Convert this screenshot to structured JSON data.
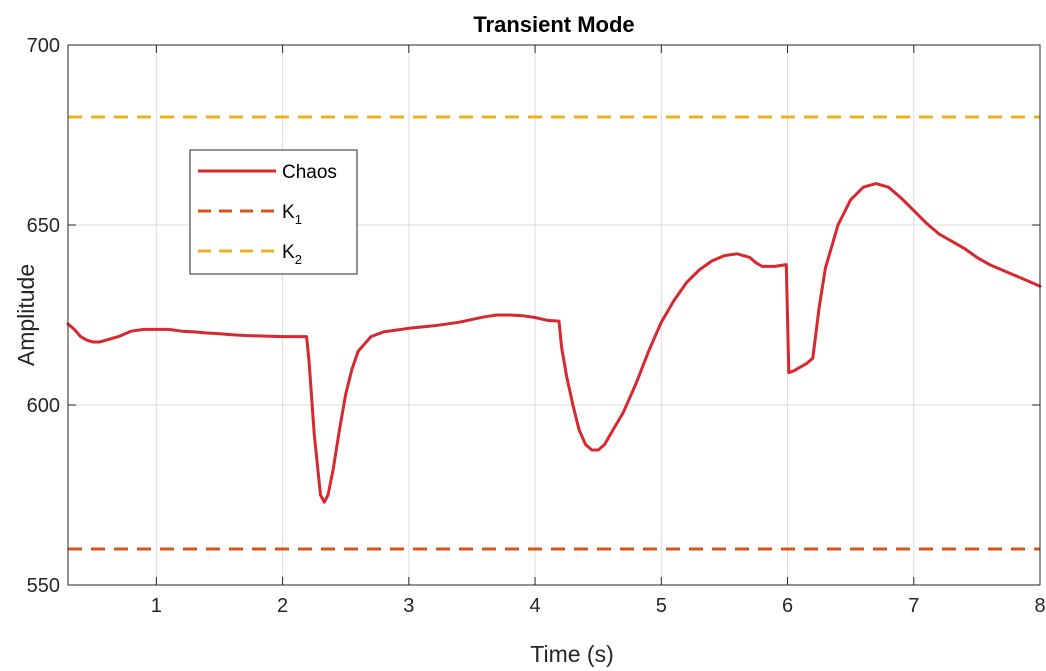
{
  "chart_data": {
    "type": "line",
    "title": "Transient Mode",
    "xlabel": "Time (s)",
    "ylabel": "Amplitude",
    "xlim": [
      0.3,
      8
    ],
    "ylim": [
      550,
      700
    ],
    "x_ticks": [
      1,
      2,
      3,
      4,
      5,
      6,
      7,
      8
    ],
    "y_ticks": [
      550,
      600,
      650,
      700
    ],
    "grid": true,
    "legend_position": "upper-left",
    "series": [
      {
        "name": "Chaos",
        "style": "solid",
        "color": "#d7282f",
        "x": [
          0.3,
          0.35,
          0.4,
          0.45,
          0.5,
          0.55,
          0.6,
          0.7,
          0.8,
          0.9,
          1.0,
          1.1,
          1.2,
          1.3,
          1.4,
          1.5,
          1.6,
          1.7,
          1.8,
          1.9,
          2.0,
          2.1,
          2.19,
          2.21,
          2.25,
          2.3,
          2.33,
          2.36,
          2.4,
          2.45,
          2.5,
          2.55,
          2.6,
          2.7,
          2.8,
          2.9,
          3.0,
          3.2,
          3.4,
          3.6,
          3.7,
          3.8,
          3.9,
          4.0,
          4.1,
          4.19,
          4.21,
          4.25,
          4.3,
          4.35,
          4.4,
          4.45,
          4.5,
          4.55,
          4.6,
          4.7,
          4.8,
          4.9,
          5.0,
          5.1,
          5.2,
          5.3,
          5.4,
          5.5,
          5.6,
          5.7,
          5.75,
          5.8,
          5.9,
          5.99,
          6.01,
          6.05,
          6.1,
          6.15,
          6.2,
          6.25,
          6.3,
          6.4,
          6.5,
          6.6,
          6.7,
          6.8,
          6.9,
          7.0,
          7.1,
          7.2,
          7.3,
          7.4,
          7.5,
          7.6,
          7.7,
          7.8,
          7.9,
          8.0
        ],
        "y": [
          622.5,
          621,
          619,
          618,
          617.5,
          617.5,
          618,
          619,
          620.5,
          621,
          621,
          621,
          620.5,
          620.3,
          620,
          619.8,
          619.5,
          619.3,
          619.2,
          619.1,
          619,
          619,
          619,
          612,
          592,
          575,
          573,
          575,
          582,
          593,
          603,
          610,
          615,
          619,
          620.3,
          620.8,
          621.3,
          622,
          623,
          624.5,
          625,
          625,
          624.8,
          624.3,
          623.5,
          623.3,
          616,
          608,
          600,
          593,
          589,
          587.5,
          587.5,
          589,
          592,
          598,
          606,
          615,
          623,
          629,
          634,
          637.5,
          640,
          641.5,
          642,
          641,
          639.5,
          638.5,
          638.5,
          639,
          609,
          609.5,
          610.5,
          611.5,
          613,
          627,
          638,
          650,
          657,
          660.5,
          661.5,
          660.5,
          657.5,
          654,
          650.5,
          647.5,
          645.5,
          643.5,
          641,
          639,
          637.5,
          636,
          634.5,
          633
        ]
      },
      {
        "name": "K",
        "subscript": "1",
        "style": "dashed",
        "color": "#d95319",
        "x": [
          0.3,
          8
        ],
        "y": [
          560,
          560
        ]
      },
      {
        "name": "K",
        "subscript": "2",
        "style": "dashed",
        "color": "#edb120",
        "x": [
          0.3,
          8
        ],
        "y": [
          680,
          680
        ]
      }
    ]
  }
}
